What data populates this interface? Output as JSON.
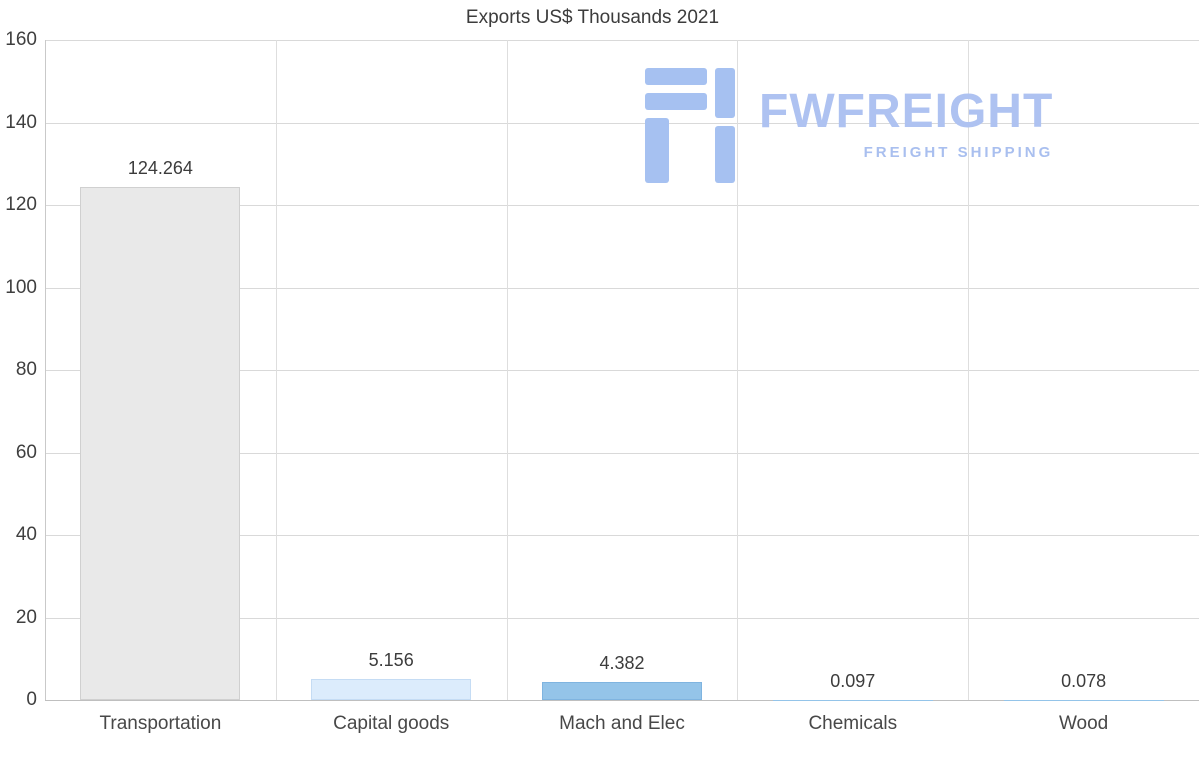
{
  "title": "Exports US$ Thousands 2021",
  "logo": {
    "brand": "FWFREIGHT",
    "tagline": "FREIGHT SHIPPING",
    "icon_color": "#a6c1f1",
    "text_color": "#aec2f1"
  },
  "chart_data": {
    "type": "bar",
    "title": "Exports US$ Thousands 2021",
    "categories": [
      "Transportation",
      "Capital goods",
      "Mach and Elec",
      "Chemicals",
      "Wood"
    ],
    "values": [
      124.264,
      5.156,
      4.382,
      0.097,
      0.078
    ],
    "value_labels": [
      "124.264",
      "5.156",
      "4.382",
      "0.097",
      "0.078"
    ],
    "bar_colors": [
      "#e9e9e9",
      "#dcecfc",
      "#94c4e9",
      "#94c4e9",
      "#94c4e9"
    ],
    "bar_borders": [
      "#d0d0d0",
      "#c5dcf4",
      "#7fb4e0",
      "#7fb4e0",
      "#7fb4e0"
    ],
    "ylim": [
      0,
      160
    ],
    "yticks": [
      0,
      20,
      40,
      60,
      80,
      100,
      120,
      140,
      160
    ],
    "grid": true,
    "legend": "none",
    "xlabel": "",
    "ylabel": ""
  }
}
